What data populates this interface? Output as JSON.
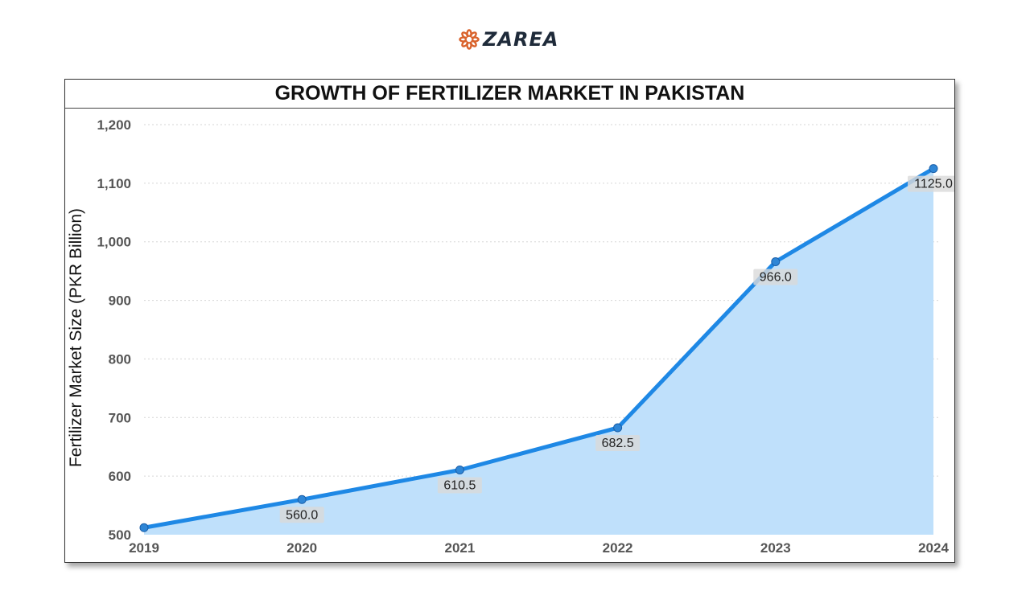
{
  "brand": {
    "name": "ZAREA",
    "icon": "gear-flower-icon",
    "icon_color": "#d9622b",
    "text_color": "#1f2b3a"
  },
  "chart_data": {
    "type": "area",
    "title": "GROWTH OF FERTILIZER MARKET IN PAKISTAN",
    "xlabel": "",
    "ylabel": "Fertilizer Market Size (PKR Billion)",
    "x": [
      "2019",
      "2020",
      "2021",
      "2022",
      "2023",
      "2024"
    ],
    "values": [
      512,
      560.0,
      610.5,
      682.5,
      966.0,
      1125.0
    ],
    "data_labels": [
      "",
      "560.0",
      "610.5",
      "682.5",
      "966.0",
      "1125.0"
    ],
    "ylim": [
      500,
      1200
    ],
    "yticks": [
      "500",
      "600",
      "700",
      "800",
      "900",
      "1,000",
      "1,100",
      "1,200"
    ],
    "grid": "horizontal-dotted",
    "colors": {
      "line": "#1e88e5",
      "fill": "#bfe0fb",
      "marker": "#2f86d6"
    }
  }
}
